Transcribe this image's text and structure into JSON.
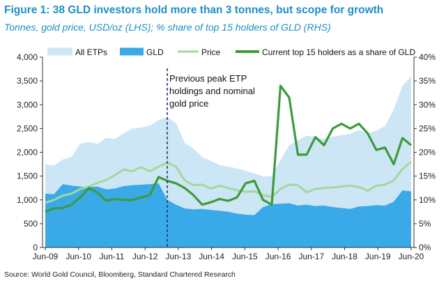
{
  "title": "Figure 1: 38 GLD investors hold more than 3 tonnes, but scope for growth",
  "subtitle": "Tonnes, gold price, USD/oz (LHS); % share of top 15 holders of GLD (RHS)",
  "source": "Source: World Gold Council, Bloomberg, Standard Chartered Research",
  "colors": {
    "all_etps": "#cde6f6",
    "gld": "#3aa9e8",
    "price": "#a3d89a",
    "share": "#3d9a3a",
    "title": "#1d8fc4",
    "divider": "#1e3a6e"
  },
  "chart_data": {
    "type": "area",
    "x_tick_labels": [
      "Jun-09",
      "Jun-10",
      "Jun-11",
      "Jun-12",
      "Jun-13",
      "Jun-14",
      "Jun-15",
      "Jun-16",
      "Jun-17",
      "Jun-18",
      "Jun-19",
      "Jun-20"
    ],
    "y_left": {
      "min": 0,
      "max": 4000,
      "ticks": [
        "0",
        "500",
        "1,000",
        "1,500",
        "2,000",
        "2,500",
        "3,000",
        "3,500",
        "4,000"
      ]
    },
    "y_right": {
      "min": 0,
      "max": 40,
      "ticks": [
        "0%",
        "5%",
        "10%",
        "15%",
        "20%",
        "25%",
        "30%",
        "35%",
        "40%"
      ]
    },
    "grid": false,
    "legend_position": "top",
    "series": [
      {
        "name": "All ETPs",
        "kind": "area",
        "axis": "left",
        "values": [
          1750,
          1720,
          1850,
          1900,
          2180,
          2220,
          2180,
          2300,
          2280,
          2400,
          2500,
          2520,
          2560,
          2680,
          2740,
          2620,
          2200,
          2080,
          1900,
          1820,
          1730,
          1700,
          1660,
          1610,
          1560,
          1490,
          1500,
          1840,
          2150,
          2250,
          2350,
          2320,
          2280,
          2330,
          2360,
          2390,
          2470,
          2400,
          2450,
          2550,
          2900,
          3400,
          3600
        ]
      },
      {
        "name": "GLD",
        "kind": "area",
        "axis": "left",
        "values": [
          1130,
          1120,
          1330,
          1300,
          1280,
          1270,
          1280,
          1220,
          1240,
          1290,
          1310,
          1320,
          1330,
          1350,
          1000,
          900,
          820,
          800,
          810,
          790,
          770,
          750,
          710,
          690,
          680,
          850,
          910,
          920,
          930,
          880,
          900,
          870,
          880,
          850,
          830,
          810,
          860,
          870,
          890,
          880,
          960,
          1200,
          1180
        ]
      },
      {
        "name": "Price",
        "kind": "line",
        "axis": "left",
        "values": [
          940,
          1000,
          1090,
          1130,
          1230,
          1280,
          1360,
          1420,
          1520,
          1640,
          1600,
          1690,
          1600,
          1700,
          1780,
          1700,
          1410,
          1310,
          1320,
          1240,
          1300,
          1250,
          1200,
          1170,
          1180,
          1100,
          1060,
          1230,
          1320,
          1310,
          1160,
          1230,
          1250,
          1260,
          1280,
          1300,
          1270,
          1190,
          1300,
          1320,
          1410,
          1650,
          1800
        ]
      },
      {
        "name": "Current top 15 holders as a share of GLD",
        "kind": "line",
        "axis": "right",
        "values": [
          7.5,
          8.2,
          8.3,
          9.0,
          10.5,
          12.5,
          11.5,
          9.8,
          10.2,
          10.0,
          10.0,
          10.5,
          11.0,
          14.8,
          14.0,
          13.5,
          12.5,
          11.0,
          9.0,
          9.5,
          10.2,
          9.8,
          10.5,
          13.5,
          14.0,
          10.0,
          9.0,
          34.0,
          31.5,
          19.5,
          19.5,
          23.2,
          21.5,
          25.0,
          26.0,
          25.0,
          26.0,
          24.0,
          20.5,
          21.0,
          17.5,
          23.0,
          21.5
        ]
      }
    ],
    "annotation": "Previous peak ETP holdings and nominal gold price",
    "annotation_lines": [
      "Previous peak ETP",
      "holdings and nominal",
      "gold price"
    ]
  }
}
